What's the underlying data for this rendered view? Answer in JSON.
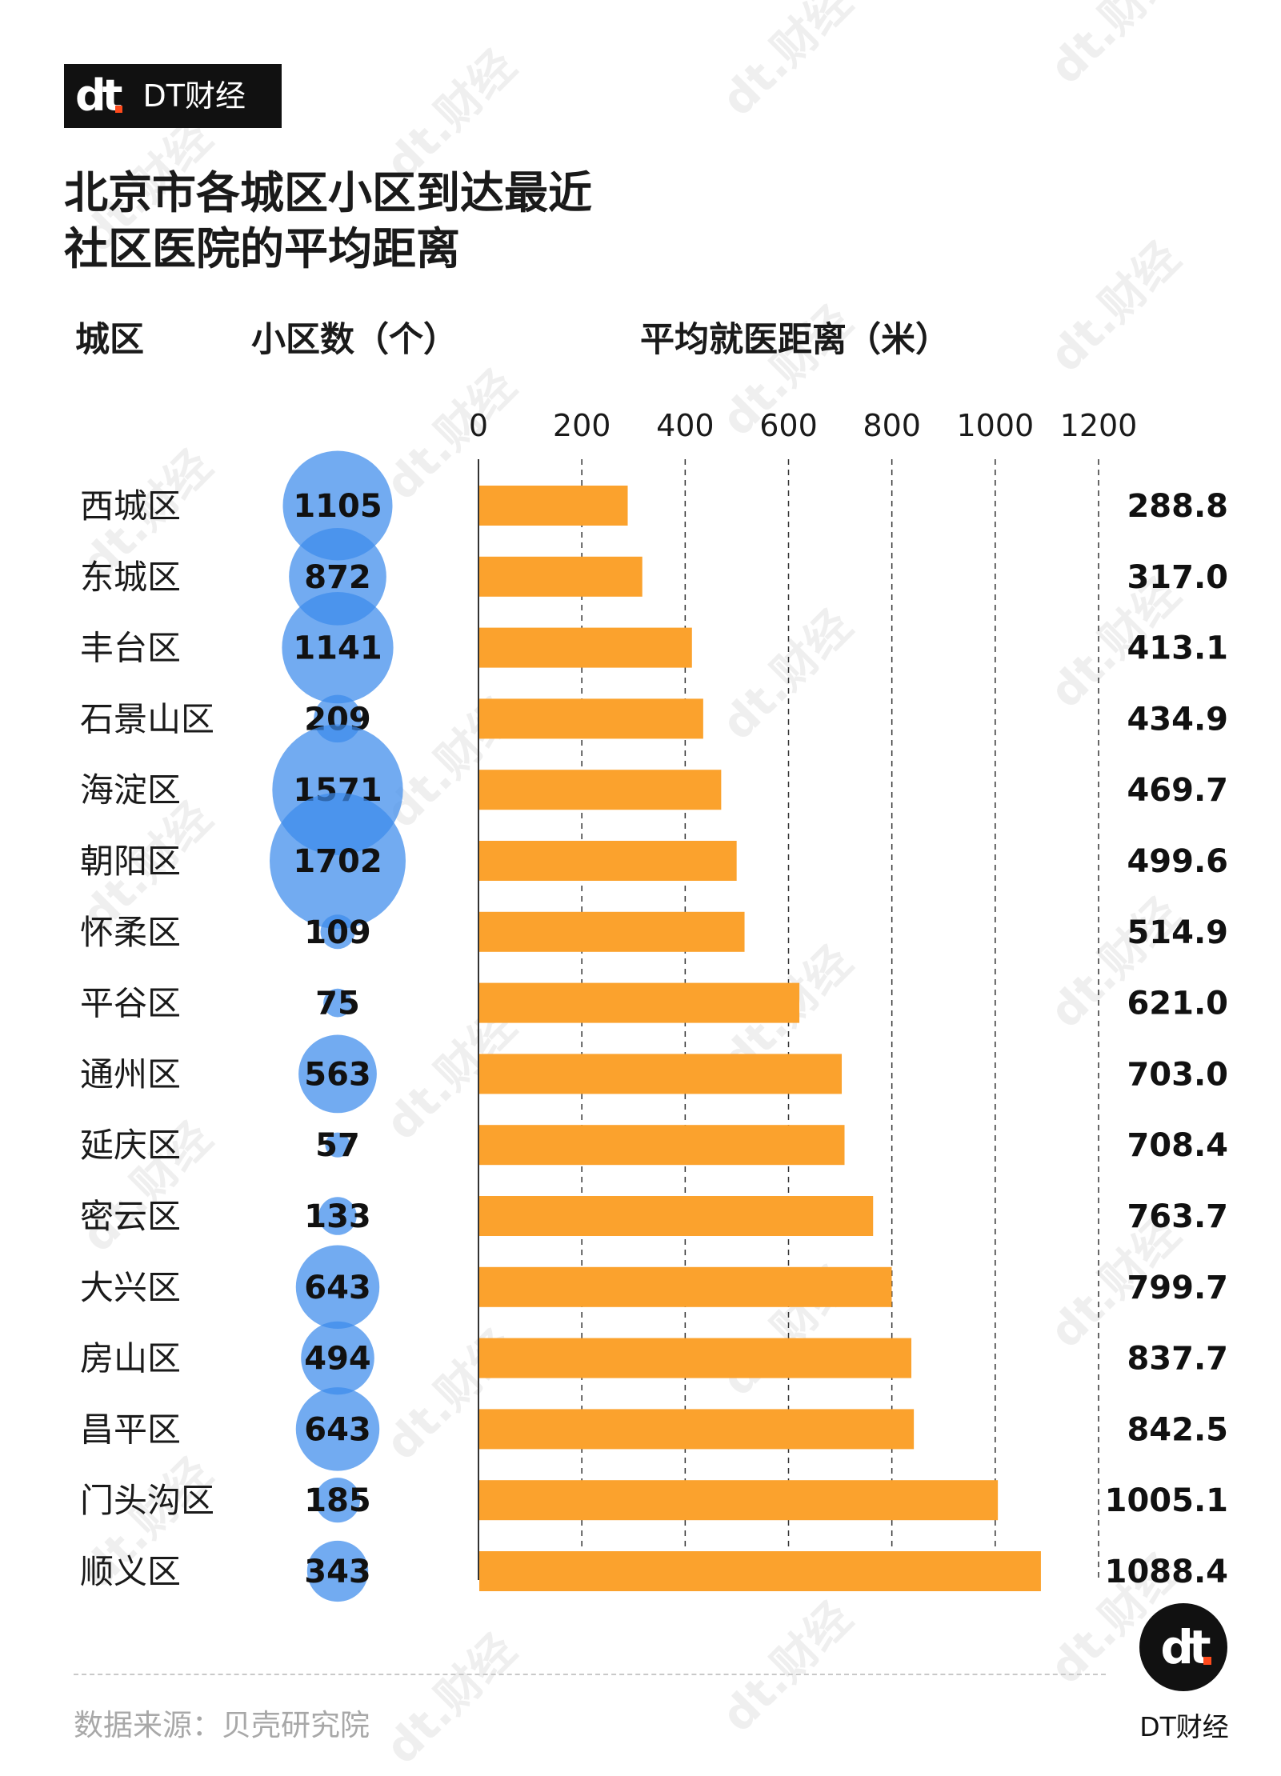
{
  "brand": {
    "logo_mark": "dt",
    "name": "DT财经",
    "watermark": "dt.财经"
  },
  "title_lines": [
    "北京市各城区小区到达最近",
    "社区医院的平均距离"
  ],
  "headers": {
    "district": "城区",
    "count": "小区数（个）",
    "distance": "平均就医距离（米）"
  },
  "colors": {
    "bar": "#fba22d",
    "bubble": "#3b8beb",
    "text": "#1a1a1a",
    "grid": "#333333",
    "source": "#a8a8a8"
  },
  "chart_data": {
    "type": "bar",
    "orientation": "horizontal",
    "xlim": [
      0,
      1200
    ],
    "x_ticks": [
      "0",
      "200",
      "400",
      "600",
      "800",
      "1000",
      "1200"
    ],
    "grid": "vertical dashed lines at each tick",
    "categories": [
      "西城区",
      "东城区",
      "丰台区",
      "石景山区",
      "海淀区",
      "朝阳区",
      "怀柔区",
      "平谷区",
      "通州区",
      "延庆区",
      "密云区",
      "大兴区",
      "房山区",
      "昌平区",
      "门头沟区",
      "顺义区"
    ],
    "values": [
      288.8,
      317.0,
      413.1,
      434.9,
      469.7,
      499.6,
      514.9,
      621.0,
      703.0,
      708.4,
      763.7,
      799.7,
      837.7,
      842.5,
      1005.1,
      1088.4
    ],
    "value_labels": [
      "288.8",
      "317.0",
      "413.1",
      "434.9",
      "469.7",
      "499.6",
      "514.9",
      "621.0",
      "703.0",
      "708.4",
      "763.7",
      "799.7",
      "837.7",
      "842.5",
      "1005.1",
      "1088.4"
    ],
    "bubble_series": {
      "values": [
        1105,
        872,
        1141,
        209,
        1571,
        1702,
        109,
        75,
        563,
        57,
        133,
        643,
        494,
        643,
        185,
        343
      ],
      "labels": [
        "1105",
        "872",
        "1141",
        "209",
        "1571",
        "1702",
        "109",
        "75",
        "563",
        "57",
        "133",
        "643",
        "494",
        "643",
        "185",
        "343"
      ]
    }
  },
  "footer": {
    "source": "数据来源：贝壳研究院",
    "corner_mark": "dt",
    "corner_name": "DT财经"
  }
}
